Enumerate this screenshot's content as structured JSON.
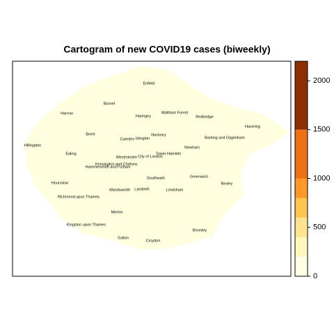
{
  "title": "Cartogram of new COVID19 cases (biweekly)",
  "regions": [
    "Enfield",
    "Barnet",
    "Harrow",
    "Haringey",
    "Waltham Forest",
    "Redbridge",
    "Havering",
    "Brent",
    "Camden",
    "Islington",
    "Hackney",
    "Barking and Dagenham",
    "Hillingdon",
    "Ealing",
    "Newham",
    "Tower Hamlets",
    "City of London",
    "Westminster",
    "Kensington and Chelsea",
    "Hammersmith and Fulham",
    "Greenwich",
    "Southwark",
    "Bexley",
    "Hounslow",
    "Wandsworth",
    "Lambeth",
    "Lewisham",
    "Richmond upon Thames",
    "Merton",
    "Kingston upon Thames",
    "Bromley",
    "Sutton",
    "Croydon"
  ],
  "legend": {
    "breaks": [
      0,
      200,
      400,
      600,
      800,
      1000,
      1500,
      2200
    ],
    "colors": [
      "#ffffe5",
      "#fff7bc",
      "#fee391",
      "#fec44f",
      "#fe9929",
      "#ec7014",
      "#8c2d04"
    ],
    "ticks": [
      0,
      500,
      1000,
      1500,
      2000
    ]
  }
}
